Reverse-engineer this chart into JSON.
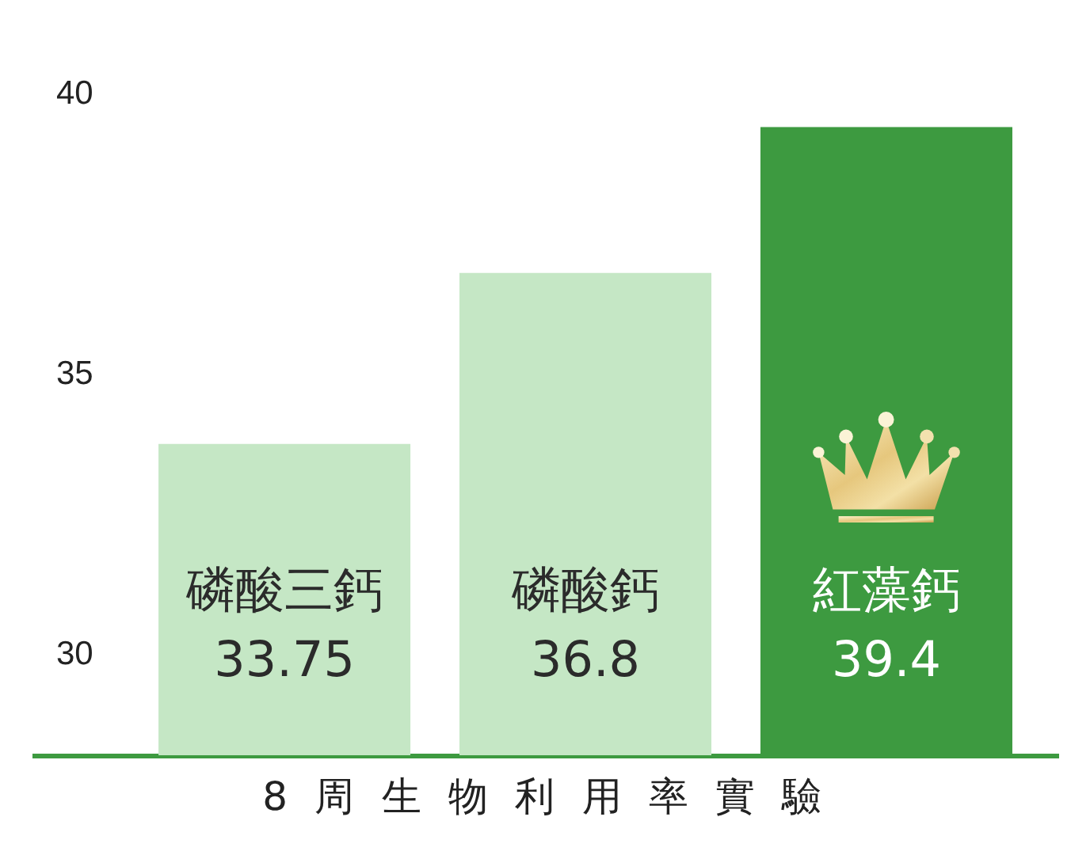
{
  "chart_data": {
    "type": "bar",
    "xlabel": "8 周 生 物 利 用 率 實 驗",
    "categories": [
      "磷酸三鈣",
      "磷酸鈣",
      "紅藻鈣"
    ],
    "values": [
      33.75,
      36.8,
      39.4
    ],
    "colors": [
      "#c5e7c5",
      "#c5e7c5",
      "#3d9a40"
    ],
    "ylim": [
      28.2,
      40
    ],
    "yticks": [
      30,
      35,
      40
    ],
    "data_labels": true,
    "grid": false
  }
}
